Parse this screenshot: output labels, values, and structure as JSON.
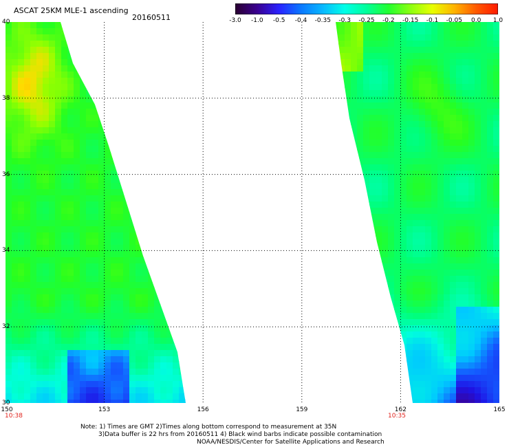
{
  "header": {
    "title": "ASCAT 25KM MLE-1 ascending",
    "date": "20160511"
  },
  "colorbar": {
    "tick_labels": [
      "-3.0",
      "-1.0",
      "-0.5",
      "-0.4",
      "-0.35",
      "-0.3",
      "-0.25",
      "-0.2",
      "-0.15",
      "-0.1",
      "-0.05",
      "0.0",
      "1.0"
    ],
    "colors": [
      "#2a0030",
      "#3a0090",
      "#2a22ff",
      "#0a78ff",
      "#08b8ff",
      "#00ffe8",
      "#00ff9a",
      "#22ff30",
      "#8cff10",
      "#e8ff00",
      "#ffb400",
      "#ff5a00",
      "#ff1a00"
    ]
  },
  "map": {
    "lon_range": [
      150,
      165
    ],
    "lat_range": [
      30,
      40
    ],
    "lon_ticks": [
      "150",
      "153",
      "156",
      "159",
      "162",
      "165"
    ],
    "lat_ticks": [
      "40",
      "38",
      "36",
      "34",
      "32",
      "30"
    ],
    "grid": true,
    "left_swath_time": "10:38",
    "right_swath_time": "10:35"
  },
  "notes": {
    "line1": "Note: 1) Times are GMT 2)Times along bottom correspond to measurement at 35N",
    "line2": "3)Data buffer is 22 hrs from 20160511 4) Black wind barbs indicate possible contamination",
    "line3": "NOAA/NESDIS/Center for Satellite Applications and Research"
  }
}
